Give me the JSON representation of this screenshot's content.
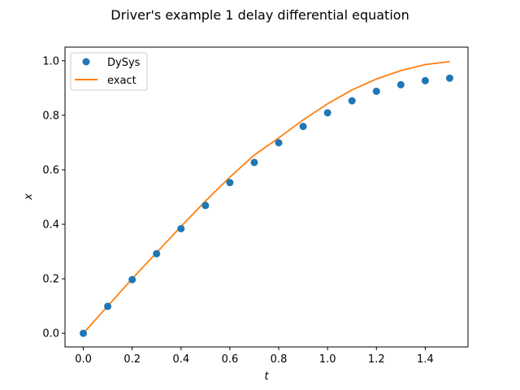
{
  "chart_data": {
    "type": "line",
    "title": "Driver's example 1 delay differential equation",
    "xlabel": "t",
    "ylabel": "x",
    "xlim": [
      -0.075,
      1.575
    ],
    "ylim": [
      -0.05,
      1.05
    ],
    "xticks": [
      0.0,
      0.2,
      0.4,
      0.6,
      0.8,
      1.0,
      1.2,
      1.4
    ],
    "xtick_labels": [
      "0.0",
      "0.2",
      "0.4",
      "0.6",
      "0.8",
      "1.0",
      "1.2",
      "1.4"
    ],
    "yticks": [
      0.0,
      0.2,
      0.4,
      0.6,
      0.8,
      1.0
    ],
    "ytick_labels": [
      "0.0",
      "0.2",
      "0.4",
      "0.6",
      "0.8",
      "1.0"
    ],
    "grid": false,
    "legend_position": "top-left",
    "series": [
      {
        "name": "DySys",
        "kind": "scatter",
        "color": "#1f77b4",
        "x": [
          0.0,
          0.1,
          0.2,
          0.3,
          0.4,
          0.5,
          0.6,
          0.7,
          0.8,
          0.9,
          1.0,
          1.1,
          1.2,
          1.3,
          1.4,
          1.5
        ],
        "y": [
          0.0,
          0.099,
          0.197,
          0.292,
          0.384,
          0.469,
          0.553,
          0.627,
          0.699,
          0.759,
          0.809,
          0.853,
          0.888,
          0.912,
          0.927,
          0.936
        ]
      },
      {
        "name": "exact",
        "kind": "line",
        "color": "#ff7f0e",
        "x": [
          0.0,
          0.1,
          0.2,
          0.3,
          0.4,
          0.5,
          0.6,
          0.7,
          0.8,
          0.9,
          1.0,
          1.1,
          1.2,
          1.3,
          1.4,
          1.5
        ],
        "y": [
          0.0,
          0.1,
          0.2,
          0.296,
          0.392,
          0.485,
          0.573,
          0.654,
          0.717,
          0.783,
          0.842,
          0.893,
          0.933,
          0.964,
          0.986,
          0.997
        ]
      }
    ]
  }
}
